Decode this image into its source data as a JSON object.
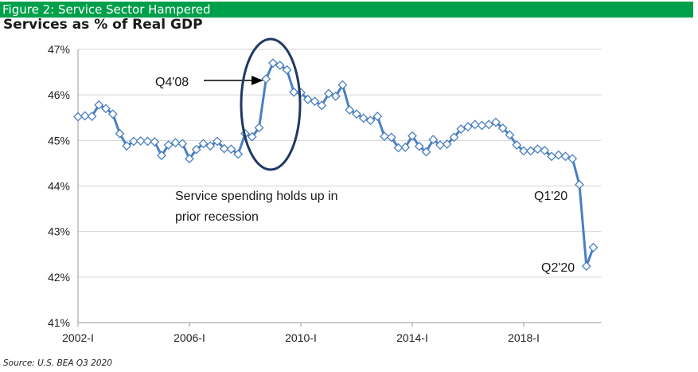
{
  "header": {
    "figure_label": "Figure 2: Service Sector Hampered",
    "chart_title": "Services as % of Real GDP",
    "source": "Source: U.S. BEA Q3 2020"
  },
  "colors": {
    "header_bg": "#00a04a",
    "series_line": "#4a7fc0",
    "ellipse": "#1f3864"
  },
  "chart_data": {
    "type": "line",
    "title": "Services as % of Real GDP",
    "xlabel": "",
    "ylabel": "",
    "ylim": [
      41,
      47
    ],
    "y_ticks": [
      "41%",
      "42%",
      "43%",
      "44%",
      "45%",
      "46%",
      "47%"
    ],
    "x_ticks": [
      {
        "label": "2002-I",
        "index": 0
      },
      {
        "label": "2006-I",
        "index": 16
      },
      {
        "label": "2010-I",
        "index": 32
      },
      {
        "label": "2014-I",
        "index": 48
      },
      {
        "label": "2018-I",
        "index": 64
      }
    ],
    "grid": "horizontal",
    "series": [
      {
        "name": "",
        "start": "2002-Q1",
        "frequency": "quarterly",
        "values": [
          45.52,
          45.54,
          45.53,
          45.78,
          45.7,
          45.58,
          45.15,
          44.88,
          44.98,
          44.99,
          44.98,
          44.97,
          44.67,
          44.9,
          44.95,
          44.93,
          44.6,
          44.8,
          44.93,
          44.88,
          44.98,
          44.82,
          44.81,
          44.7,
          45.15,
          45.08,
          45.28,
          46.35,
          46.7,
          46.65,
          46.55,
          46.06,
          46.05,
          45.9,
          45.86,
          45.77,
          46.03,
          45.97,
          46.22,
          45.67,
          45.58,
          45.49,
          45.44,
          45.53,
          45.09,
          45.07,
          44.84,
          44.85,
          45.1,
          44.87,
          44.75,
          45.02,
          44.9,
          44.92,
          45.07,
          45.25,
          45.3,
          45.35,
          45.33,
          45.35,
          45.4,
          45.27,
          45.12,
          44.9,
          44.77,
          44.77,
          44.81,
          44.78,
          44.65,
          44.68,
          44.65,
          44.6,
          44.03,
          42.24,
          42.65
        ]
      }
    ],
    "annotations": [
      {
        "text": "Q4'08",
        "index": 27,
        "type": "arrow"
      },
      {
        "text": "Service spending holds up in",
        "type": "note"
      },
      {
        "text": "prior recession",
        "type": "note"
      },
      {
        "text": "Q1'20",
        "index": 72,
        "type": "label"
      },
      {
        "text": "Q2'20",
        "index": 73,
        "type": "label"
      }
    ]
  }
}
